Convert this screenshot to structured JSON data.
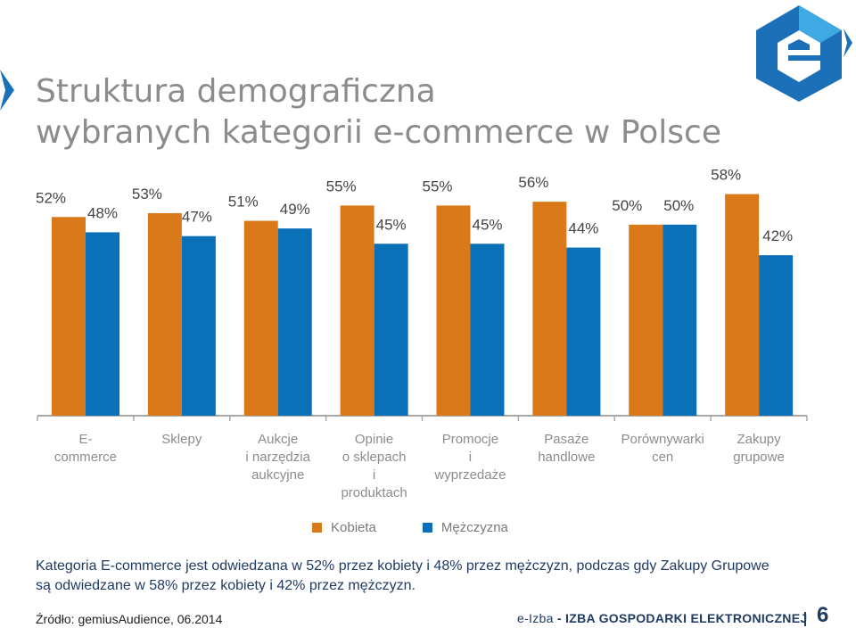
{
  "title": {
    "line1": "Struktura demograficzna",
    "line2": "wybranych kategorii e-commerce w Polsce"
  },
  "colors": {
    "female": "#d9791a",
    "male": "#0a70b8",
    "title": "#8c8c8c",
    "text_dark": "#1f3b63",
    "logo_blue": "#1b70b8",
    "logo_light": "#3fa9e4"
  },
  "chart_data": {
    "type": "bar",
    "categories": [
      [
        "E-",
        "commerce"
      ],
      [
        "Sklepy"
      ],
      [
        "Aukcje",
        "i narzędzia",
        "aukcyjne"
      ],
      [
        "Opinie",
        "o sklepach",
        "i",
        "produktach"
      ],
      [
        "Promocje",
        "i",
        "wyprzedaże"
      ],
      [
        "Pasaże",
        "handlowe"
      ],
      [
        "Porównywarki",
        "cen"
      ],
      [
        "Zakupy",
        "grupowe"
      ]
    ],
    "series": [
      {
        "name": "Kobieta",
        "values": [
          52,
          53,
          51,
          55,
          55,
          56,
          50,
          58
        ],
        "labels": [
          "52%",
          "53%",
          "51%",
          "55%",
          "55%",
          "56%",
          "50%",
          "58%"
        ]
      },
      {
        "name": "Mężczyzna",
        "values": [
          48,
          47,
          49,
          45,
          45,
          44,
          50,
          42
        ],
        "labels": [
          "48%",
          "47%",
          "49%",
          "45%",
          "45%",
          "44%",
          "50%",
          "42%"
        ]
      }
    ],
    "ylim": [
      0,
      60
    ],
    "value_format": "percent",
    "legend_position": "bottom",
    "grid": false
  },
  "legend": {
    "female_label": "Kobieta",
    "male_label": "Mężczyzna"
  },
  "note": {
    "line1": "Kategoria E-commerce jest odwiedzana w 52% przez kobiety i 48% przez mężczyzn, podczas gdy Zakupy Grupowe",
    "line2": "są odwiedzane w 58% przez kobiety i 42% przez mężczyzn."
  },
  "source": "Źródło: gemiusAudience, 06.2014",
  "footer": {
    "brand_prefix": "e-Izba",
    "brand_suffix": " - IZBA GOSPODARKI ELEKTRONICZNEJ",
    "page_number": "6"
  },
  "logo": {
    "icon": "e-izba-logo-icon"
  }
}
